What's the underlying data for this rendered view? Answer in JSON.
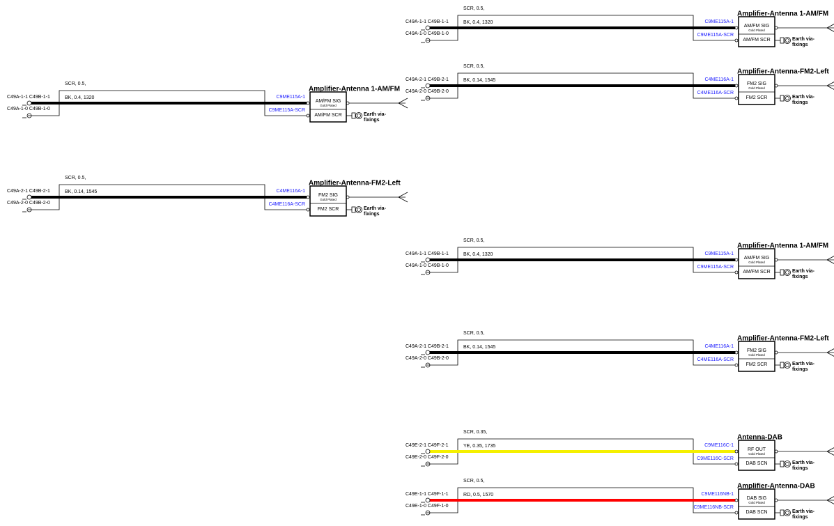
{
  "circuits": [
    {
      "shield": "SCR, 0.5,",
      "wire": "BK, 0.4, 1320",
      "color": "#000000",
      "left_top": "C49A-1-1 C49B-1-1",
      "left_bottom": "C49A-1-0 C49B-1-0",
      "right_top": "C9ME115A-1",
      "right_bottom": "C9ME115A-SCR",
      "title": "Amplifier-Antenna 1-AM/FM",
      "pin_top": "AM/FM SIG",
      "plating": "Gold Plated",
      "pin_bottom": "AM/FM SCR",
      "earth": [
        "Earth via-",
        "fixings"
      ]
    },
    {
      "shield": "SCR, 0.5,",
      "wire": "BK, 0.14, 1545",
      "color": "#000000",
      "left_top": "C49A-2-1 C49B-2-1",
      "left_bottom": "C49A-2-0 C49B-2-0",
      "right_top": "C4ME116A-1",
      "right_bottom": "C4ME116A-SCR",
      "title": "Amplifier-Antenna-FM2-Left",
      "pin_top": "FM2 SIG",
      "plating": "Gold Plated",
      "pin_bottom": "FM2 SCR",
      "earth": [
        "Earth via-",
        "fixings"
      ]
    },
    {
      "shield": "SCR, 0.5,",
      "wire": "BK, 0.4, 1320",
      "color": "#000000",
      "left_top": "C49A-1-1 C49B-1-1",
      "left_bottom": "C49A-1-0 C49B-1-0",
      "right_top": "C9ME115A-1",
      "right_bottom": "C9ME115A-SCR",
      "title": "Amplifier-Antenna 1-AM/FM",
      "pin_top": "AM/FM SIG",
      "plating": "Gold Plated",
      "pin_bottom": "AM/FM SCR",
      "earth": [
        "Earth via-",
        "fixings"
      ]
    },
    {
      "shield": "SCR, 0.5,",
      "wire": "BK, 0.14, 1545",
      "color": "#000000",
      "left_top": "C49A-2-1 C49B-2-1",
      "left_bottom": "C49A-2-0 C49B-2-0",
      "right_top": "C4ME116A-1",
      "right_bottom": "C4ME116A-SCR",
      "title": "Amplifier-Antenna-FM2-Left",
      "pin_top": "FM2 SIG",
      "plating": "Gold Plated",
      "pin_bottom": "FM2 SCR",
      "earth": [
        "Earth via-",
        "fixings"
      ]
    },
    {
      "shield": "SCR, 0.5,",
      "wire": "BK, 0.4, 1320",
      "color": "#000000",
      "left_top": "C49A-1-1 C49B-1-1",
      "left_bottom": "C49A-1-0 C49B-1-0",
      "right_top": "C9ME115A-1",
      "right_bottom": "C9ME115A-SCR",
      "title": "Amplifier-Antenna 1-AM/FM",
      "pin_top": "AM/FM SIG",
      "plating": "Gold Plated",
      "pin_bottom": "AM/FM SCR",
      "earth": [
        "Earth via-",
        "fixings"
      ]
    },
    {
      "shield": "SCR, 0.5,",
      "wire": "BK, 0.14, 1545",
      "color": "#000000",
      "left_top": "C49A-2-1 C49B-2-1",
      "left_bottom": "C49A-2-0 C49B-2-0",
      "right_top": "C4ME116A-1",
      "right_bottom": "C4ME116A-SCR",
      "title": "Amplifier-Antenna-FM2-Left",
      "pin_top": "FM2 SIG",
      "plating": "Gold Plated",
      "pin_bottom": "FM2 SCR",
      "earth": [
        "Earth via-",
        "fixings"
      ]
    },
    {
      "shield": "SCR, 0.35,",
      "wire": "YE, 0.35, 1735",
      "color": "#f5f000",
      "left_top": "C49E-2-1 C49F-2-1",
      "left_bottom": "C49E-2-0 C49F-2-0",
      "right_top": "C9ME116C-1",
      "right_bottom": "C9ME116C-SCR",
      "title": "Antenna-DAB",
      "pin_top": "RF OUT",
      "plating": "Gold Plated",
      "pin_bottom": "DAB SCN",
      "earth": [
        "Earth via-",
        "fixings"
      ]
    },
    {
      "shield": "SCR, 0.5,",
      "wire": "RD, 0.5, 1570",
      "color": "#ff0000",
      "left_top": "C49E-1-1 C49F-1-1",
      "left_bottom": "C49E-1-0 C49F-1-0",
      "right_top": "C9ME116NB-1",
      "right_bottom": "C9ME116NB-SCR",
      "title": "Amplifier-Antenna-DAB",
      "pin_top": "DAB SIG",
      "plating": "Gold Plated",
      "pin_bottom": "DAB SCN",
      "earth": [
        "Earth via-",
        "fixings"
      ]
    }
  ]
}
